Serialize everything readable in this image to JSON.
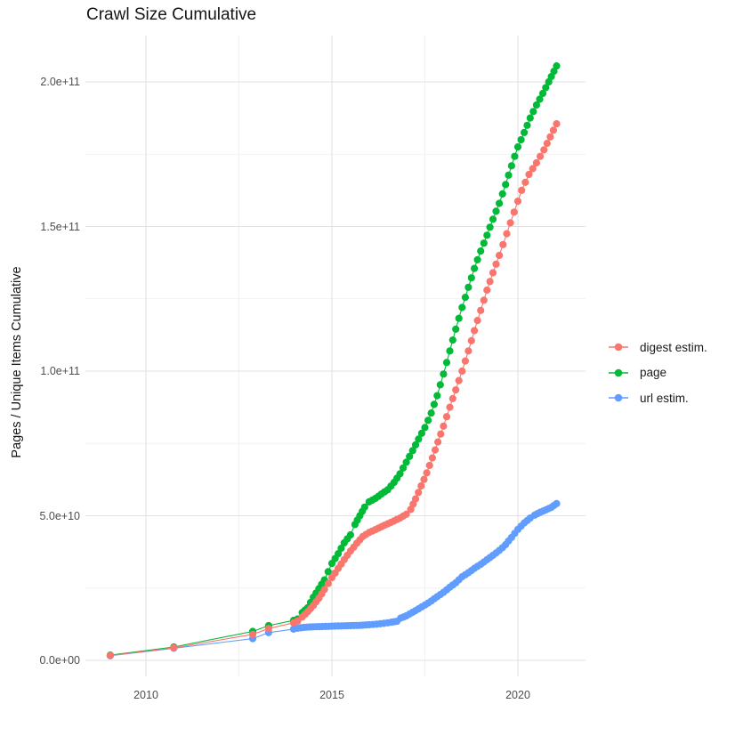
{
  "chart_data": {
    "type": "line",
    "title": "Crawl Size Cumulative",
    "xlabel": "",
    "ylabel": "Pages / Unique Items Cumulative",
    "value_unit": "1e9 (billions of pages / unique items)",
    "grid": true,
    "background_color": "#ffffff",
    "grid_major_color": "#e2e2e2",
    "grid_minor_color": "#eeeeee",
    "tick_label_color": "#4d4d4d",
    "legend_position": "right",
    "xlim": [
      2008.4,
      2021.8
    ],
    "ylim_e9": [
      0,
      216
    ],
    "x_ticks": [
      {
        "value": 2010,
        "label": "2010"
      },
      {
        "value": 2015,
        "label": "2015"
      },
      {
        "value": 2020,
        "label": "2020"
      }
    ],
    "y_ticks": [
      {
        "value": 0,
        "label": "0.0e+00"
      },
      {
        "value": 50,
        "label": "5.0e+10"
      },
      {
        "value": 100,
        "label": "1.0e+11"
      },
      {
        "value": 150,
        "label": "1.5e+11"
      },
      {
        "value": 200,
        "label": "2.0e+11"
      }
    ],
    "x_minor_values": [
      2012.5,
      2017.5
    ],
    "y_minor_values": [
      25,
      75,
      125,
      175
    ],
    "dense_from_year": 2014.0,
    "point_step_years": 0.08333,
    "series": [
      {
        "name": "digest estim.",
        "color": "#F8766D",
        "points": [
          [
            2009.04,
            1.7
          ],
          [
            2010.75,
            4.3
          ],
          [
            2012.87,
            9.0
          ],
          [
            2013.3,
            11.0
          ],
          [
            2013.97,
            13.0
          ],
          [
            2014.08,
            13.6
          ],
          [
            2014.2,
            15.0
          ],
          [
            2014.35,
            16.8
          ],
          [
            2014.5,
            19.0
          ],
          [
            2014.65,
            21.5
          ],
          [
            2014.8,
            24.5
          ],
          [
            2015.0,
            28.6
          ],
          [
            2015.17,
            31.8
          ],
          [
            2015.33,
            34.8
          ],
          [
            2015.5,
            37.8
          ],
          [
            2015.67,
            40.5
          ],
          [
            2015.83,
            42.8
          ],
          [
            2016.0,
            44.2
          ],
          [
            2016.17,
            45.2
          ],
          [
            2016.33,
            46.2
          ],
          [
            2016.5,
            47.2
          ],
          [
            2016.67,
            48.2
          ],
          [
            2016.83,
            49.2
          ],
          [
            2017.0,
            50.5
          ],
          [
            2017.12,
            52.2
          ],
          [
            2017.25,
            55.8
          ],
          [
            2017.4,
            60.3
          ],
          [
            2017.55,
            64.8
          ],
          [
            2017.7,
            70.0
          ],
          [
            2017.85,
            75.5
          ],
          [
            2018.0,
            81.0
          ],
          [
            2018.17,
            87.5
          ],
          [
            2018.33,
            93.5
          ],
          [
            2018.5,
            100.0
          ],
          [
            2018.67,
            107.0
          ],
          [
            2018.83,
            114.0
          ],
          [
            2019.0,
            121.0
          ],
          [
            2019.17,
            128.0
          ],
          [
            2019.33,
            134.0
          ],
          [
            2019.5,
            140.0
          ],
          [
            2019.7,
            147.5
          ],
          [
            2019.9,
            155.0
          ],
          [
            2020.1,
            162.5
          ],
          [
            2020.3,
            168.0
          ],
          [
            2020.5,
            172.0
          ],
          [
            2020.7,
            176.5
          ],
          [
            2020.87,
            181.0
          ],
          [
            2021.04,
            185.5
          ]
        ]
      },
      {
        "name": "page",
        "color": "#00BA38",
        "points": [
          [
            2009.04,
            1.8
          ],
          [
            2010.75,
            4.6
          ],
          [
            2012.87,
            10.0
          ],
          [
            2013.3,
            12.0
          ],
          [
            2013.97,
            13.8
          ],
          [
            2014.08,
            14.3
          ],
          [
            2014.2,
            16.5
          ],
          [
            2014.35,
            18.2
          ],
          [
            2014.5,
            21.8
          ],
          [
            2014.65,
            24.8
          ],
          [
            2014.8,
            27.8
          ],
          [
            2015.0,
            33.5
          ],
          [
            2015.17,
            36.9
          ],
          [
            2015.33,
            40.6
          ],
          [
            2015.5,
            43.4
          ],
          [
            2015.62,
            47.0
          ],
          [
            2015.75,
            50.0
          ],
          [
            2015.88,
            53.0
          ],
          [
            2016.0,
            54.8
          ],
          [
            2016.17,
            56.0
          ],
          [
            2016.33,
            57.5
          ],
          [
            2016.5,
            59.0
          ],
          [
            2016.67,
            61.5
          ],
          [
            2016.83,
            64.5
          ],
          [
            2017.0,
            68.5
          ],
          [
            2017.17,
            72.5
          ],
          [
            2017.33,
            76.5
          ],
          [
            2017.5,
            80.5
          ],
          [
            2017.67,
            85.5
          ],
          [
            2017.83,
            91.5
          ],
          [
            2018.0,
            99.0
          ],
          [
            2018.17,
            107.0
          ],
          [
            2018.33,
            114.5
          ],
          [
            2018.5,
            122.0
          ],
          [
            2018.67,
            129.0
          ],
          [
            2018.83,
            135.5
          ],
          [
            2019.0,
            141.5
          ],
          [
            2019.17,
            147.0
          ],
          [
            2019.33,
            152.5
          ],
          [
            2019.5,
            158.0
          ],
          [
            2019.67,
            164.5
          ],
          [
            2019.83,
            171.0
          ],
          [
            2020.0,
            177.5
          ],
          [
            2020.17,
            182.5
          ],
          [
            2020.33,
            187.5
          ],
          [
            2020.5,
            192.0
          ],
          [
            2020.67,
            196.0
          ],
          [
            2020.83,
            200.0
          ],
          [
            2021.04,
            205.5
          ]
        ]
      },
      {
        "name": "url estim.",
        "color": "#619CFF",
        "points": [
          [
            2009.04,
            1.6
          ],
          [
            2010.75,
            4.2
          ],
          [
            2012.87,
            7.5
          ],
          [
            2013.3,
            9.6
          ],
          [
            2013.97,
            10.8
          ],
          [
            2014.08,
            11.1
          ],
          [
            2014.25,
            11.4
          ],
          [
            2014.5,
            11.6
          ],
          [
            2014.75,
            11.7
          ],
          [
            2015.0,
            11.8
          ],
          [
            2015.25,
            11.9
          ],
          [
            2015.5,
            12.0
          ],
          [
            2015.75,
            12.1
          ],
          [
            2016.0,
            12.3
          ],
          [
            2016.2,
            12.5
          ],
          [
            2016.4,
            12.8
          ],
          [
            2016.6,
            13.2
          ],
          [
            2016.75,
            13.5
          ],
          [
            2016.85,
            14.6
          ],
          [
            2017.0,
            15.4
          ],
          [
            2017.17,
            16.6
          ],
          [
            2017.33,
            17.8
          ],
          [
            2017.5,
            19.1
          ],
          [
            2017.67,
            20.5
          ],
          [
            2017.83,
            22.0
          ],
          [
            2018.0,
            23.5
          ],
          [
            2018.17,
            25.3
          ],
          [
            2018.33,
            26.8
          ],
          [
            2018.5,
            28.9
          ],
          [
            2018.67,
            30.3
          ],
          [
            2018.83,
            31.8
          ],
          [
            2019.0,
            33.2
          ],
          [
            2019.17,
            34.8
          ],
          [
            2019.33,
            36.3
          ],
          [
            2019.5,
            38.0
          ],
          [
            2019.67,
            40.0
          ],
          [
            2019.83,
            42.5
          ],
          [
            2020.0,
            45.3
          ],
          [
            2020.17,
            47.5
          ],
          [
            2020.33,
            49.2
          ],
          [
            2020.45,
            50.2
          ],
          [
            2020.6,
            51.2
          ],
          [
            2020.75,
            52.0
          ],
          [
            2020.9,
            52.9
          ],
          [
            2021.04,
            54.2
          ]
        ]
      }
    ]
  }
}
